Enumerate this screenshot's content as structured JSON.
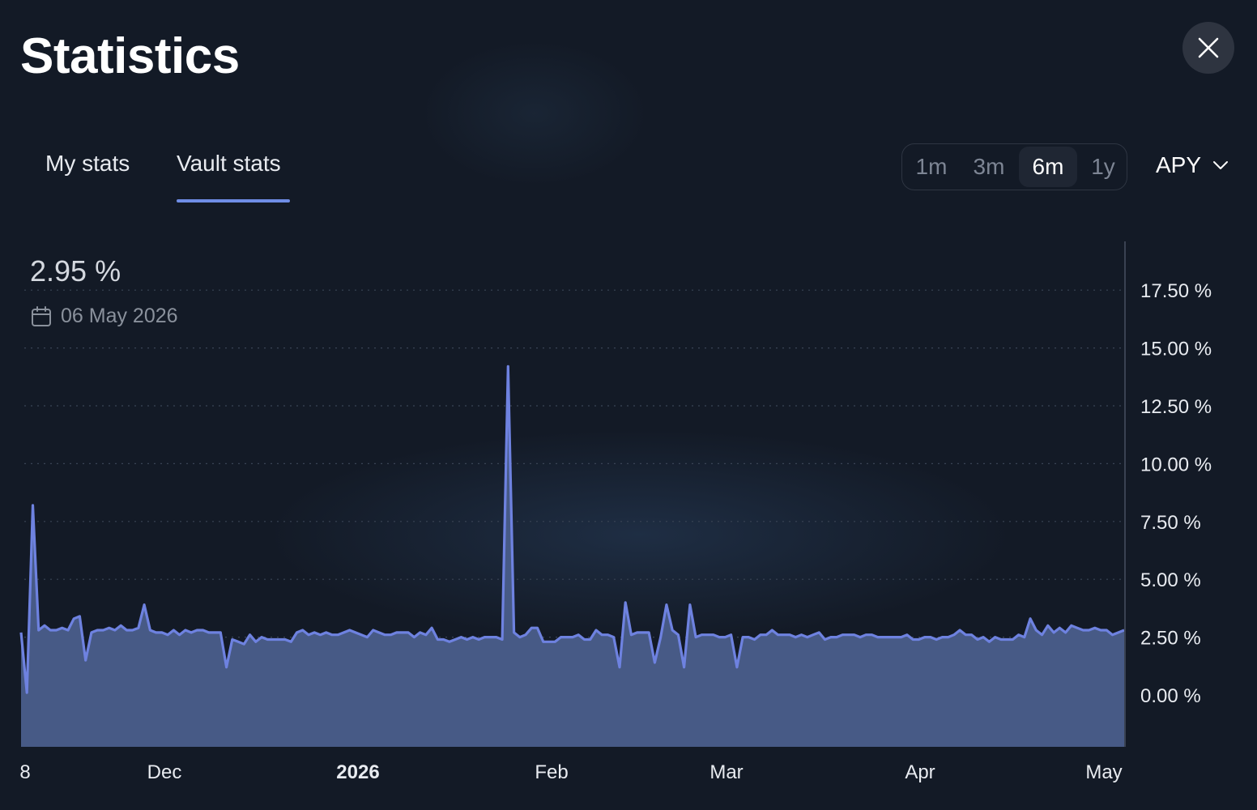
{
  "header": {
    "title": "Statistics",
    "close_icon": "close-icon"
  },
  "tabs": [
    {
      "label": "My stats",
      "active": false
    },
    {
      "label": "Vault stats",
      "active": true
    }
  ],
  "range_selector": {
    "options": [
      "1m",
      "3m",
      "6m",
      "1y"
    ],
    "selected": "6m"
  },
  "metric_select": {
    "value": "APY",
    "icon": "chevron-down-icon"
  },
  "readout": {
    "value": "2.95 %",
    "date": "06 May 2026",
    "icon": "calendar-icon"
  },
  "colors": {
    "background": "#131a26",
    "accent": "#6f8de6",
    "line": "#6e82e0",
    "area_fill": "#475a86"
  },
  "chart_data": {
    "type": "area",
    "x_tick_labels": [
      "8",
      "Dec",
      "2026",
      "Feb",
      "Mar",
      "Apr",
      "May"
    ],
    "x_tick_label_bold": "2026",
    "y_tick_labels": [
      "17.50 %",
      "15.00 %",
      "12.50 %",
      "10.00 %",
      "7.50 %",
      "5.00 %",
      "2.50 %",
      "0.00 %"
    ],
    "y_ticks": [
      17.5,
      15,
      12.5,
      10,
      7.5,
      5,
      2.5,
      0
    ],
    "ylim": [
      -2.25,
      19.5
    ],
    "y_axis_position": "right",
    "grid": "horizontal dotted",
    "series": [
      {
        "values": [
          2.7,
          0.1,
          8.2,
          2.8,
          3.0,
          2.8,
          2.8,
          2.9,
          2.8,
          3.3,
          3.4,
          1.5,
          2.7,
          2.8,
          2.8,
          2.9,
          2.8,
          3.0,
          2.8,
          2.8,
          2.9,
          3.9,
          2.8,
          2.7,
          2.7,
          2.6,
          2.8,
          2.6,
          2.8,
          2.7,
          2.8,
          2.8,
          2.7,
          2.7,
          2.7,
          1.2,
          2.4,
          2.3,
          2.2,
          2.6,
          2.3,
          2.5,
          2.4,
          2.4,
          2.4,
          2.4,
          2.3,
          2.7,
          2.8,
          2.6,
          2.7,
          2.6,
          2.7,
          2.6,
          2.6,
          2.7,
          2.8,
          2.7,
          2.6,
          2.5,
          2.8,
          2.7,
          2.6,
          2.6,
          2.7,
          2.7,
          2.7,
          2.5,
          2.7,
          2.6,
          2.9,
          2.4,
          2.4,
          2.3,
          2.4,
          2.5,
          2.4,
          2.5,
          2.4,
          2.5,
          2.5,
          2.5,
          2.4,
          14.2,
          2.7,
          2.5,
          2.6,
          2.9,
          2.9,
          2.3,
          2.3,
          2.3,
          2.5,
          2.5,
          2.5,
          2.6,
          2.4,
          2.4,
          2.8,
          2.6,
          2.6,
          2.5,
          1.2,
          4.0,
          2.6,
          2.7,
          2.7,
          2.7,
          1.4,
          2.5,
          3.9,
          2.8,
          2.6,
          1.2,
          3.9,
          2.5,
          2.6,
          2.6,
          2.6,
          2.5,
          2.5,
          2.6,
          1.2,
          2.5,
          2.5,
          2.4,
          2.6,
          2.6,
          2.8,
          2.6,
          2.6,
          2.6,
          2.5,
          2.6,
          2.5,
          2.6,
          2.7,
          2.4,
          2.5,
          2.5,
          2.6,
          2.6,
          2.6,
          2.5,
          2.6,
          2.6,
          2.5,
          2.5,
          2.5,
          2.5,
          2.5,
          2.6,
          2.4,
          2.4,
          2.5,
          2.5,
          2.4,
          2.5,
          2.5,
          2.6,
          2.8,
          2.6,
          2.6,
          2.4,
          2.5,
          2.3,
          2.5,
          2.4,
          2.4,
          2.4,
          2.6,
          2.5,
          3.3,
          2.8,
          2.6,
          3.0,
          2.7,
          2.9,
          2.7,
          3.0,
          2.9,
          2.8,
          2.8,
          2.9,
          2.8,
          2.8,
          2.6,
          2.7,
          2.8
        ]
      }
    ]
  }
}
